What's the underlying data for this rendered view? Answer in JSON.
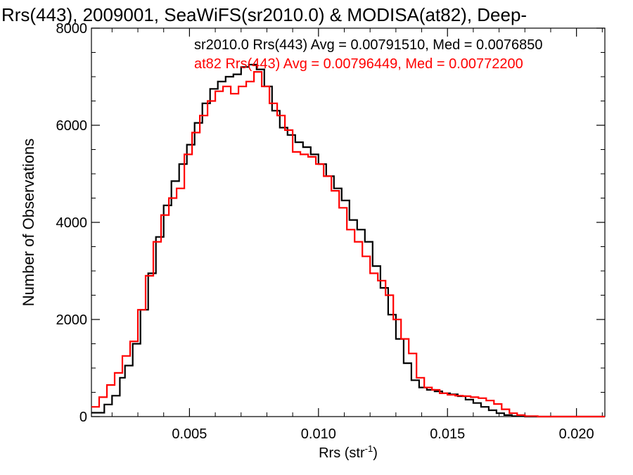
{
  "chart_data": {
    "type": "line",
    "title": "Rrs(443), 2009001, SeaWiFS(sr2010.0) & MODISA(at82), Deep-",
    "xlabel_main": "Rrs (str",
    "xlabel_sup": "-1",
    "xlabel_close": ")",
    "ylabel": "Number of Observations",
    "xlim": [
      0.0012,
      0.0211
    ],
    "ylim": [
      0,
      8000
    ],
    "x_ticks": [
      0.005,
      0.01,
      0.015,
      0.02
    ],
    "x_tick_labels": [
      "0.005",
      "0.010",
      "0.015",
      "0.020"
    ],
    "y_ticks": [
      0,
      2000,
      4000,
      6000,
      8000
    ],
    "y_tick_labels": [
      "0",
      "2000",
      "4000",
      "6000",
      "8000"
    ],
    "grid": false,
    "annotations": [
      {
        "text": "sr2010.0 Rrs(443) Avg = 0.00791510, Med = 0.0076850",
        "color": "#000000"
      },
      {
        "text": "at82 Rrs(443) Avg = 0.00796449, Med = 0.00772200",
        "color": "#ff0000"
      }
    ],
    "series": [
      {
        "color": "#000000",
        "points": [
          [
            0.0012,
            80
          ],
          [
            0.0017,
            250
          ],
          [
            0.002,
            430
          ],
          [
            0.0023,
            800
          ],
          [
            0.0025,
            1050
          ],
          [
            0.0028,
            1500
          ],
          [
            0.0031,
            2200
          ],
          [
            0.0034,
            2950
          ],
          [
            0.0037,
            3700
          ],
          [
            0.004,
            4350
          ],
          [
            0.0043,
            4850
          ],
          [
            0.0046,
            5200
          ],
          [
            0.0049,
            5600
          ],
          [
            0.0052,
            6050
          ],
          [
            0.0055,
            6450
          ],
          [
            0.0058,
            6750
          ],
          [
            0.0061,
            6900
          ],
          [
            0.0064,
            7000
          ],
          [
            0.0067,
            7050
          ],
          [
            0.007,
            7200
          ],
          [
            0.0073,
            7250
          ],
          [
            0.0076,
            7150
          ],
          [
            0.0079,
            6800
          ],
          [
            0.0082,
            6300
          ],
          [
            0.0085,
            5950
          ],
          [
            0.0088,
            5800
          ],
          [
            0.0091,
            5650
          ],
          [
            0.0094,
            5550
          ],
          [
            0.0097,
            5400
          ],
          [
            0.01,
            5200
          ],
          [
            0.0103,
            4950
          ],
          [
            0.0106,
            4700
          ],
          [
            0.0109,
            4450
          ],
          [
            0.0112,
            4050
          ],
          [
            0.0115,
            3850
          ],
          [
            0.0118,
            3600
          ],
          [
            0.0121,
            3100
          ],
          [
            0.0124,
            2650
          ],
          [
            0.0127,
            2100
          ],
          [
            0.013,
            1600
          ],
          [
            0.0133,
            1100
          ],
          [
            0.0136,
            750
          ],
          [
            0.0139,
            600
          ],
          [
            0.0142,
            550
          ],
          [
            0.0145,
            520
          ],
          [
            0.0148,
            480
          ],
          [
            0.0151,
            460
          ],
          [
            0.0154,
            420
          ],
          [
            0.0157,
            350
          ],
          [
            0.016,
            280
          ],
          [
            0.0163,
            200
          ],
          [
            0.0166,
            130
          ],
          [
            0.0169,
            70
          ],
          [
            0.0172,
            30
          ],
          [
            0.0175,
            10
          ],
          [
            0.018,
            0
          ],
          [
            0.0211,
            0
          ]
        ]
      },
      {
        "color": "#ff0000",
        "points": [
          [
            0.0012,
            200
          ],
          [
            0.0015,
            400
          ],
          [
            0.0018,
            650
          ],
          [
            0.0021,
            900
          ],
          [
            0.0024,
            1250
          ],
          [
            0.0027,
            1550
          ],
          [
            0.003,
            2200
          ],
          [
            0.0033,
            2900
          ],
          [
            0.0036,
            3600
          ],
          [
            0.0039,
            4150
          ],
          [
            0.0042,
            4500
          ],
          [
            0.0045,
            4700
          ],
          [
            0.0048,
            5400
          ],
          [
            0.0051,
            5850
          ],
          [
            0.0054,
            6200
          ],
          [
            0.0057,
            6500
          ],
          [
            0.006,
            6700
          ],
          [
            0.0063,
            6800
          ],
          [
            0.0066,
            6650
          ],
          [
            0.0069,
            6800
          ],
          [
            0.0072,
            6900
          ],
          [
            0.0075,
            7100
          ],
          [
            0.0078,
            6800
          ],
          [
            0.0081,
            6450
          ],
          [
            0.0084,
            6200
          ],
          [
            0.0087,
            5900
          ],
          [
            0.009,
            5450
          ],
          [
            0.0093,
            5400
          ],
          [
            0.0096,
            5350
          ],
          [
            0.0099,
            5200
          ],
          [
            0.0102,
            4950
          ],
          [
            0.0105,
            4650
          ],
          [
            0.0108,
            4300
          ],
          [
            0.0111,
            3850
          ],
          [
            0.0114,
            3600
          ],
          [
            0.0117,
            3300
          ],
          [
            0.012,
            2950
          ],
          [
            0.0123,
            2800
          ],
          [
            0.0126,
            2500
          ],
          [
            0.0129,
            2000
          ],
          [
            0.0132,
            1600
          ],
          [
            0.0135,
            1300
          ],
          [
            0.0138,
            800
          ],
          [
            0.0141,
            600
          ],
          [
            0.0144,
            550
          ],
          [
            0.0147,
            480
          ],
          [
            0.015,
            450
          ],
          [
            0.0153,
            430
          ],
          [
            0.0156,
            420
          ],
          [
            0.0159,
            400
          ],
          [
            0.0162,
            380
          ],
          [
            0.0165,
            330
          ],
          [
            0.0168,
            260
          ],
          [
            0.0171,
            150
          ],
          [
            0.0174,
            70
          ],
          [
            0.0177,
            30
          ],
          [
            0.018,
            10
          ],
          [
            0.0185,
            0
          ],
          [
            0.0211,
            0
          ]
        ]
      }
    ]
  }
}
